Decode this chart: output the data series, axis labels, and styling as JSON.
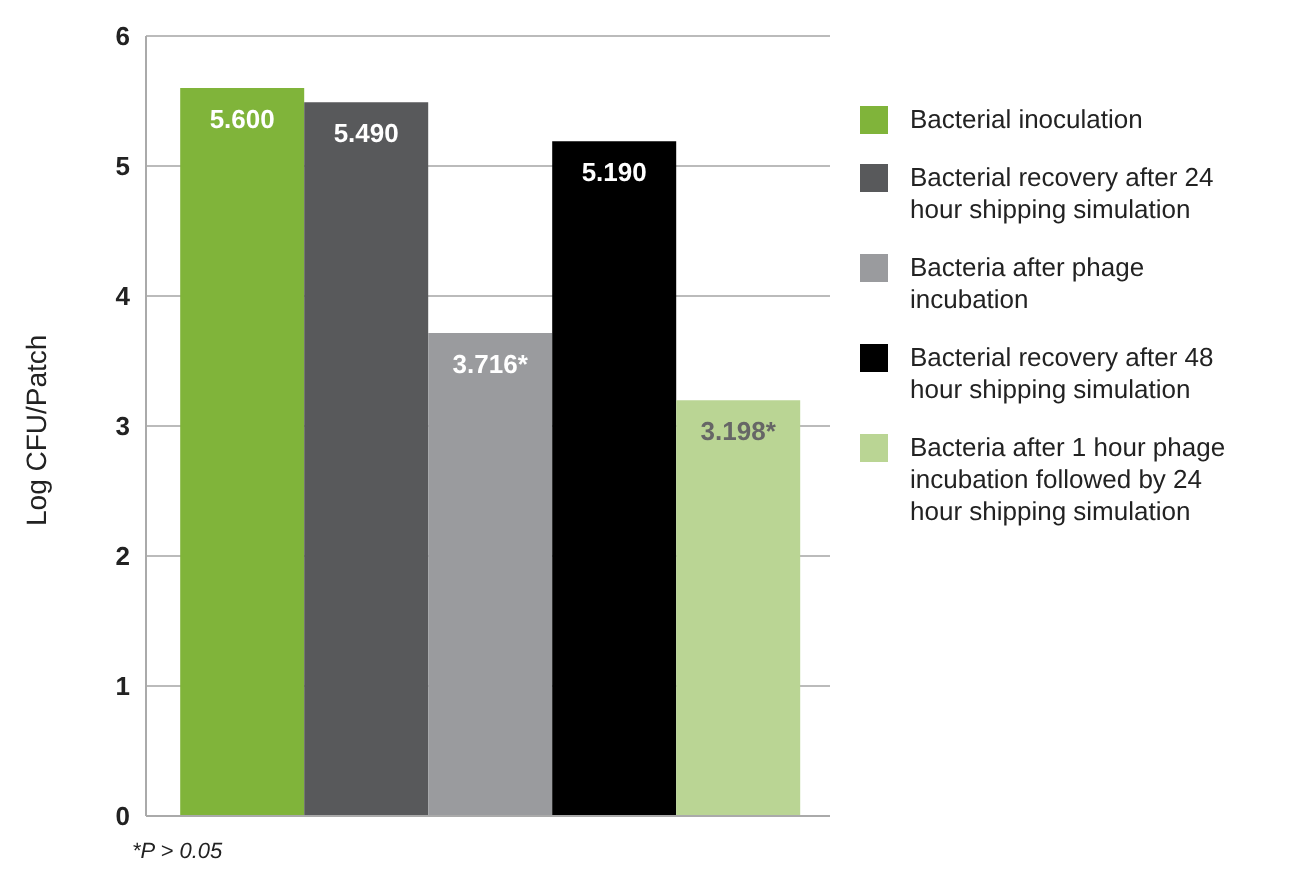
{
  "chart_data": {
    "type": "bar",
    "ylabel": "Log CFU/Patch",
    "categories": [
      null
    ],
    "series": [
      {
        "name": "Bacterial inoculation",
        "color": "#80b43a",
        "values": [
          5.6
        ],
        "value_labels": [
          "5.600"
        ]
      },
      {
        "name": "Bacterial recovery after 24 hour shipping simulation",
        "color": "#58595b",
        "values": [
          5.49
        ],
        "value_labels": [
          "5.490"
        ]
      },
      {
        "name": "Bacteria after phage incubation",
        "color": "#9a9b9e",
        "values": [
          3.716
        ],
        "value_labels": [
          "3.716*"
        ]
      },
      {
        "name": "Bacterial recovery after 48 hour shipping simulation",
        "color": "#000000",
        "values": [
          5.19
        ],
        "value_labels": [
          "5.190"
        ]
      },
      {
        "name": "Bacteria after 1 hour phage incubation followed by 24 hour shipping simulation",
        "color": "#bad594",
        "values": [
          3.198
        ],
        "value_labels": [
          "3.198*"
        ]
      }
    ],
    "ylim": [
      0,
      6
    ],
    "yticks": [
      0,
      1,
      2,
      3,
      4,
      5,
      6
    ],
    "grid": "y",
    "legend": "right",
    "annotations": [
      "*P > 0.05"
    ]
  }
}
